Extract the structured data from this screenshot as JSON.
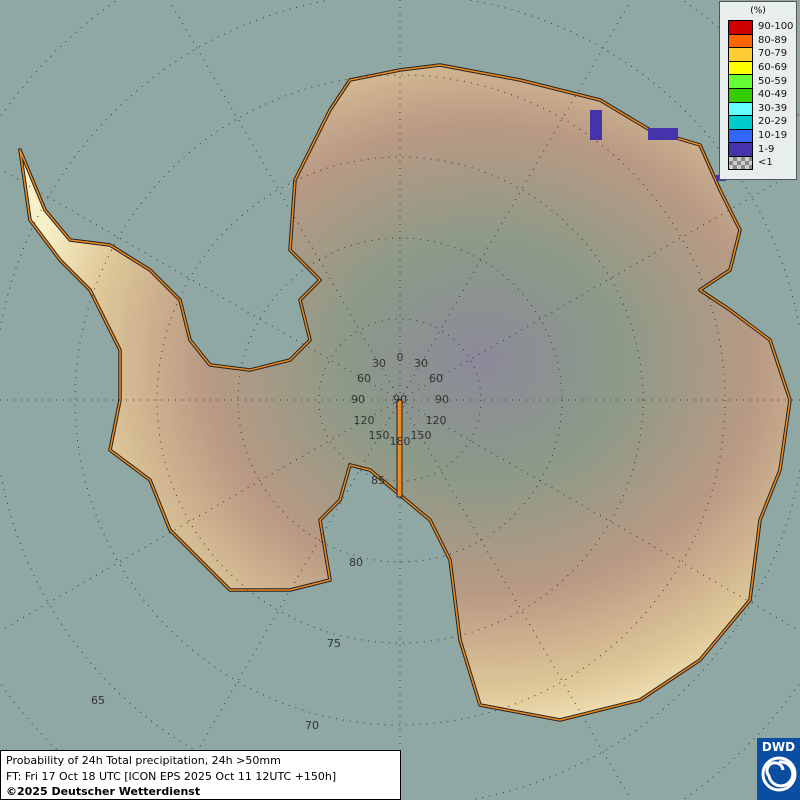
{
  "map": {
    "projection": "polar stereographic south",
    "colors": {
      "ocean": "#8fa8a4",
      "coast": "#f08a1c",
      "coast_outline": "#222222"
    },
    "meridian_labels": [
      "0",
      "30",
      "30",
      "60",
      "60",
      "90",
      "90",
      "90",
      "120",
      "120",
      "150",
      "150",
      "180"
    ],
    "latitude_labels": [
      "85",
      "80",
      "75",
      "70",
      "65"
    ]
  },
  "legend": {
    "unit": "(%)",
    "items": [
      {
        "label": "90-100",
        "color": "#cc0000"
      },
      {
        "label": "80-89",
        "color": "#ff6600"
      },
      {
        "label": "70-79",
        "color": "#ffcc33"
      },
      {
        "label": "60-69",
        "color": "#ffff00"
      },
      {
        "label": "50-59",
        "color": "#66ff33"
      },
      {
        "label": "40-49",
        "color": "#33cc00"
      },
      {
        "label": "30-39",
        "color": "#66ffff"
      },
      {
        "label": "20-29",
        "color": "#00cccc"
      },
      {
        "label": "10-19",
        "color": "#3366ff"
      },
      {
        "label": "1-9",
        "color": "#4433aa"
      },
      {
        "label": "<1",
        "color": "checker"
      }
    ]
  },
  "info": {
    "line1": "Probability of 24h Total precipitation, 24h >50mm",
    "line2": "FT: Fri 17 Oct 18 UTC [ICON EPS 2025 Oct 11 12UTC +150h]",
    "line3": "©2025 Deutscher Wetterdienst"
  },
  "logo": {
    "text": "DWD"
  }
}
